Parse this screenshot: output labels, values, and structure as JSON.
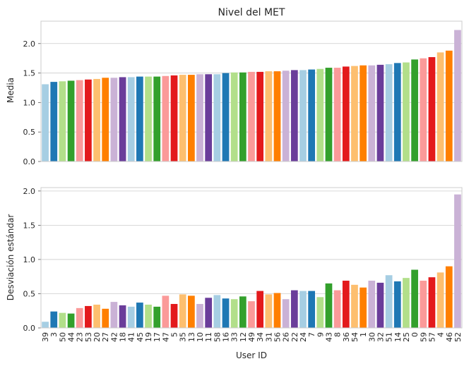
{
  "chart_data": [
    {
      "type": "bar",
      "title": "Nivel del MET",
      "xlabel": "",
      "ylabel": "Media",
      "ylim": [
        0,
        2.38
      ],
      "yticks": [
        "0.0",
        "0.5",
        "1.0",
        "1.5",
        "2.0"
      ],
      "ytick_values": [
        0,
        0.5,
        1.0,
        1.5,
        2.0
      ],
      "grid": true,
      "categories": [
        "39",
        "3",
        "50",
        "44",
        "23",
        "53",
        "20",
        "27",
        "42",
        "18",
        "41",
        "45",
        "19",
        "17",
        "47",
        "5",
        "35",
        "13",
        "10",
        "11",
        "58",
        "16",
        "33",
        "12",
        "49",
        "34",
        "31",
        "56",
        "26",
        "22",
        "24",
        "7",
        "9",
        "43",
        "8",
        "36",
        "54",
        "1",
        "30",
        "32",
        "51",
        "14",
        "25",
        "0",
        "59",
        "57",
        "4",
        "46",
        "52"
      ],
      "values": [
        1.31,
        1.35,
        1.36,
        1.37,
        1.38,
        1.39,
        1.4,
        1.42,
        1.42,
        1.43,
        1.43,
        1.44,
        1.44,
        1.44,
        1.45,
        1.46,
        1.47,
        1.47,
        1.48,
        1.48,
        1.48,
        1.5,
        1.51,
        1.51,
        1.52,
        1.52,
        1.53,
        1.53,
        1.54,
        1.55,
        1.55,
        1.56,
        1.57,
        1.59,
        1.59,
        1.61,
        1.62,
        1.63,
        1.63,
        1.64,
        1.65,
        1.67,
        1.68,
        1.73,
        1.75,
        1.77,
        1.85,
        1.88,
        2.23
      ]
    },
    {
      "type": "bar",
      "title": "",
      "xlabel": "User ID",
      "ylabel": "Desviación estándar",
      "ylim": [
        0,
        2.05
      ],
      "yticks": [
        "0.0",
        "0.5",
        "1.0",
        "1.5",
        "2.0"
      ],
      "ytick_values": [
        0,
        0.5,
        1.0,
        1.5,
        2.0
      ],
      "grid": true,
      "categories": [
        "39",
        "3",
        "50",
        "44",
        "23",
        "53",
        "20",
        "27",
        "42",
        "18",
        "41",
        "45",
        "19",
        "17",
        "47",
        "5",
        "35",
        "13",
        "10",
        "11",
        "58",
        "16",
        "33",
        "12",
        "49",
        "34",
        "31",
        "56",
        "26",
        "22",
        "24",
        "7",
        "9",
        "43",
        "8",
        "36",
        "54",
        "1",
        "30",
        "32",
        "51",
        "14",
        "25",
        "0",
        "59",
        "57",
        "4",
        "46",
        "52"
      ],
      "values": [
        0.09,
        0.24,
        0.22,
        0.21,
        0.29,
        0.32,
        0.34,
        0.28,
        0.38,
        0.33,
        0.31,
        0.37,
        0.34,
        0.31,
        0.47,
        0.35,
        0.49,
        0.47,
        0.35,
        0.44,
        0.48,
        0.43,
        0.42,
        0.46,
        0.39,
        0.54,
        0.49,
        0.51,
        0.42,
        0.55,
        0.54,
        0.54,
        0.45,
        0.65,
        0.55,
        0.69,
        0.63,
        0.59,
        0.69,
        0.66,
        0.77,
        0.68,
        0.73,
        0.85,
        0.69,
        0.74,
        0.81,
        0.9,
        1.95
      ]
    }
  ],
  "palette": [
    "#a6cee3",
    "#1f78b4",
    "#b2df8a",
    "#33a02c",
    "#fb9a99",
    "#e31a1c",
    "#fdbf6f",
    "#ff7f00",
    "#cab2d6",
    "#6a3d9a"
  ],
  "colors": {
    "grid": "#cccccc",
    "axes_edge": "#cccccc",
    "text": "#262626"
  }
}
